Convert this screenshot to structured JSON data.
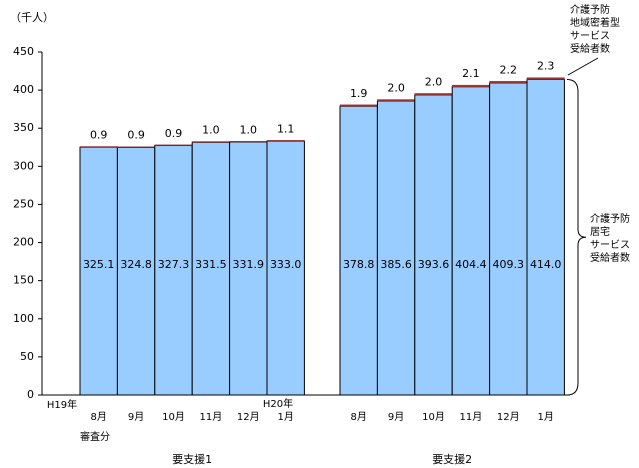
{
  "chart_data": {
    "type": "stacked-bar",
    "y_label": "（千人）",
    "categories": [
      "8月",
      "9月",
      "10月",
      "11月",
      "12月",
      "1月",
      "8月",
      "9月",
      "10月",
      "11月",
      "12月",
      "1月"
    ],
    "groups": [
      "要支援1",
      "要支援2"
    ],
    "annotations": [
      "H19年",
      "審査分",
      "H20年"
    ],
    "series": [
      {
        "name": [
          "介護予防",
          "居宅",
          "サービス",
          "受給者数"
        ],
        "color": "#99ccff",
        "values": [
          325.1,
          324.8,
          327.3,
          331.5,
          331.9,
          333.0,
          378.8,
          385.6,
          393.6,
          404.4,
          409.3,
          414.0
        ],
        "value_labels": [
          "325.1",
          "324.8",
          "327.3",
          "331.5",
          "331.9",
          "333.0",
          "378.8",
          "385.6",
          "393.6",
          "404.4",
          "409.3",
          "414.0"
        ]
      },
      {
        "name": [
          "介護予防",
          "地域密着型",
          "サービス",
          "受給者数"
        ],
        "color": "#993333",
        "values": [
          0.9,
          0.9,
          0.9,
          1.0,
          1.0,
          1.1,
          1.9,
          2.0,
          2.0,
          2.1,
          2.2,
          2.3
        ],
        "value_labels": [
          "0.9",
          "0.9",
          "0.9",
          "1.0",
          "1.0",
          "1.1",
          "1.9",
          "2.0",
          "2.0",
          "2.1",
          "2.2",
          "2.3"
        ]
      }
    ],
    "ylim": [
      0,
      450
    ],
    "yticks": [
      0,
      50,
      100,
      150,
      200,
      250,
      300,
      350,
      400,
      450
    ],
    "grid": false
  }
}
